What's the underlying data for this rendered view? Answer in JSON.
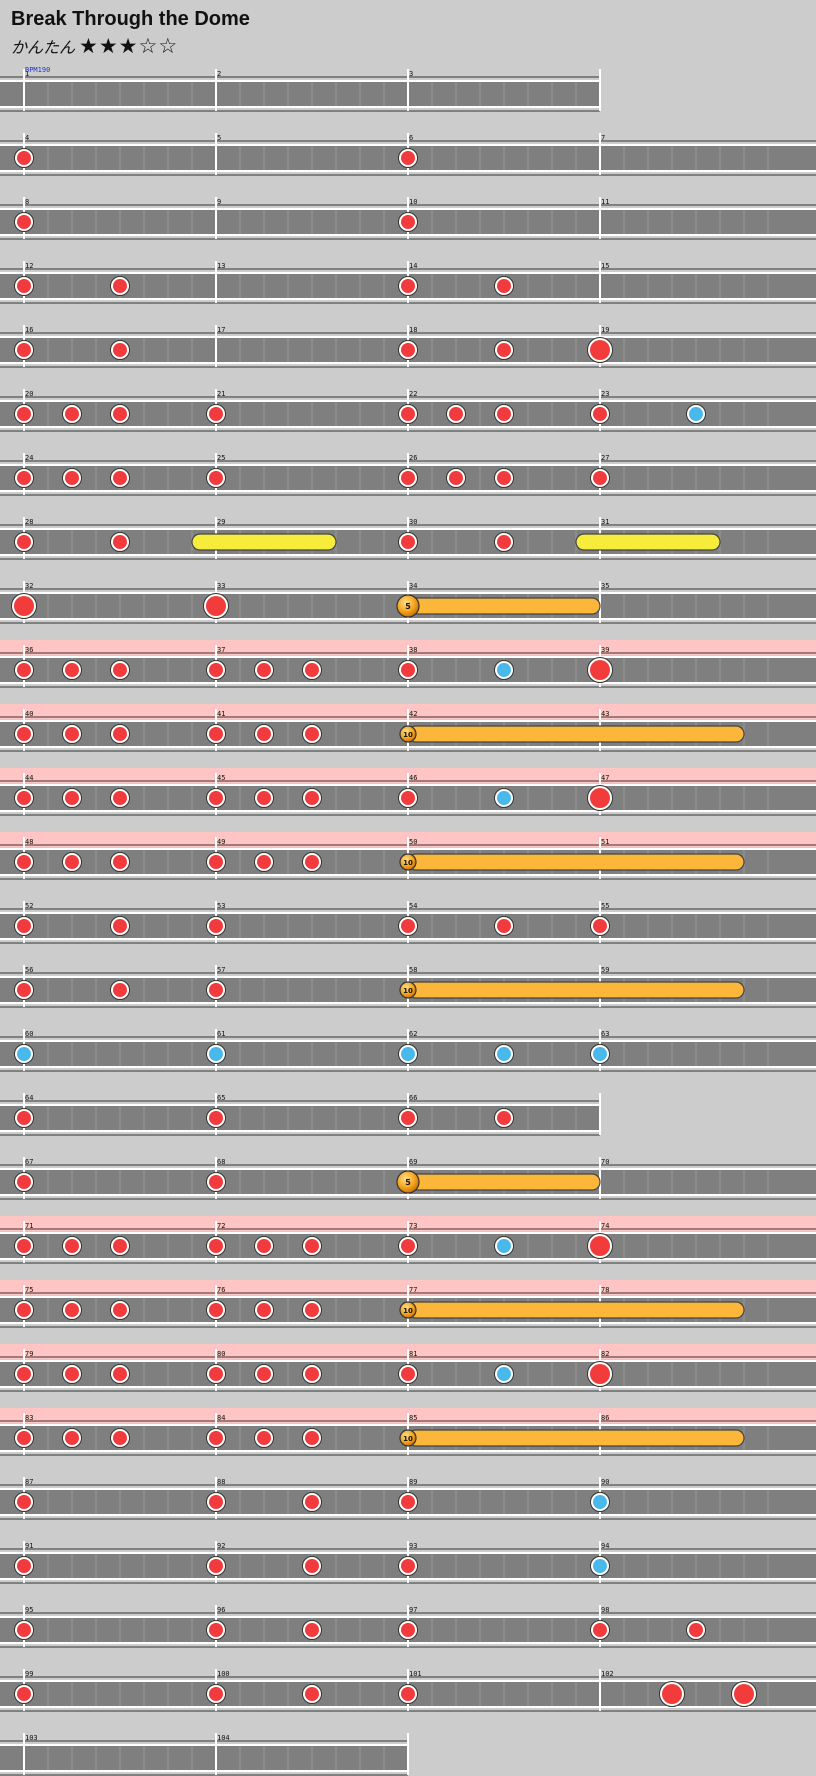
{
  "song": {
    "title": "Break Through the Dome",
    "difficulty": "かんたん",
    "stars": "★★★☆☆",
    "bpm_label": "BPM190"
  },
  "colors": {
    "background": "#cccccc",
    "lane": "#7f7f7f",
    "gogo": "#ffc4c4",
    "don": "#f23c3c",
    "ka": "#4ab9ea",
    "drumroll": "#f7ec3c",
    "balloon": "#fcb63a"
  },
  "chart_data": {
    "type": "taiko-score",
    "measures_per_row": 4,
    "rows": [
      {
        "measures": [
          "1",
          "2",
          "3"
        ],
        "gogo": false,
        "notes": []
      },
      {
        "measures": [
          "4",
          "5",
          "6",
          "7"
        ],
        "gogo": false,
        "notes": [
          {
            "t": "don",
            "b": 0
          },
          {
            "t": "don",
            "b": 8
          }
        ]
      },
      {
        "measures": [
          "8",
          "9",
          "10",
          "11"
        ],
        "gogo": false,
        "notes": [
          {
            "t": "don",
            "b": 0
          },
          {
            "t": "don",
            "b": 8
          }
        ]
      },
      {
        "measures": [
          "12",
          "13",
          "14",
          "15"
        ],
        "gogo": false,
        "notes": [
          {
            "t": "don",
            "b": 0
          },
          {
            "t": "don",
            "b": 2
          },
          {
            "t": "don",
            "b": 8
          },
          {
            "t": "don",
            "b": 10
          }
        ]
      },
      {
        "measures": [
          "16",
          "17",
          "18",
          "19"
        ],
        "gogo": false,
        "notes": [
          {
            "t": "don",
            "b": 0
          },
          {
            "t": "don",
            "b": 2
          },
          {
            "t": "don",
            "b": 8
          },
          {
            "t": "don",
            "b": 10
          },
          {
            "t": "DON",
            "b": 12
          }
        ]
      },
      {
        "measures": [
          "20",
          "21",
          "22",
          "23"
        ],
        "gogo": false,
        "notes": [
          {
            "t": "don",
            "b": 0
          },
          {
            "t": "don",
            "b": 1
          },
          {
            "t": "don",
            "b": 2
          },
          {
            "t": "don",
            "b": 4
          },
          {
            "t": "don",
            "b": 8
          },
          {
            "t": "don",
            "b": 9
          },
          {
            "t": "don",
            "b": 10
          },
          {
            "t": "don",
            "b": 12
          },
          {
            "t": "ka",
            "b": 14
          }
        ]
      },
      {
        "measures": [
          "24",
          "25",
          "26",
          "27"
        ],
        "gogo": false,
        "notes": [
          {
            "t": "don",
            "b": 0
          },
          {
            "t": "don",
            "b": 1
          },
          {
            "t": "don",
            "b": 2
          },
          {
            "t": "don",
            "b": 4
          },
          {
            "t": "don",
            "b": 8
          },
          {
            "t": "don",
            "b": 9
          },
          {
            "t": "don",
            "b": 10
          },
          {
            "t": "don",
            "b": 12
          }
        ]
      },
      {
        "measures": [
          "28",
          "29",
          "30",
          "31"
        ],
        "gogo": false,
        "notes": [
          {
            "t": "don",
            "b": 0
          },
          {
            "t": "don",
            "b": 2
          },
          {
            "t": "roll",
            "b": 3.5,
            "e": 6.5
          },
          {
            "t": "don",
            "b": 8
          },
          {
            "t": "don",
            "b": 10
          },
          {
            "t": "roll",
            "b": 11.5,
            "e": 14.5
          }
        ]
      },
      {
        "measures": [
          "32",
          "33",
          "34",
          "35"
        ],
        "gogo": false,
        "notes": [
          {
            "t": "DON",
            "b": 0
          },
          {
            "t": "DON",
            "b": 4
          },
          {
            "t": "balloon",
            "b": 8,
            "e": 12,
            "count": "5",
            "big": true
          }
        ]
      },
      {
        "measures": [
          "36",
          "37",
          "38",
          "39"
        ],
        "gogo": true,
        "notes": [
          {
            "t": "don",
            "b": 0
          },
          {
            "t": "don",
            "b": 1
          },
          {
            "t": "don",
            "b": 2
          },
          {
            "t": "don",
            "b": 4
          },
          {
            "t": "don",
            "b": 5
          },
          {
            "t": "don",
            "b": 6
          },
          {
            "t": "don",
            "b": 8
          },
          {
            "t": "ka",
            "b": 10
          },
          {
            "t": "DON",
            "b": 12
          }
        ]
      },
      {
        "measures": [
          "40",
          "41",
          "42",
          "43"
        ],
        "gogo": true,
        "notes": [
          {
            "t": "don",
            "b": 0
          },
          {
            "t": "don",
            "b": 1
          },
          {
            "t": "don",
            "b": 2
          },
          {
            "t": "don",
            "b": 4
          },
          {
            "t": "don",
            "b": 5
          },
          {
            "t": "don",
            "b": 6
          },
          {
            "t": "balloon",
            "b": 8,
            "e": 15,
            "count": "10",
            "big": false
          }
        ]
      },
      {
        "measures": [
          "44",
          "45",
          "46",
          "47"
        ],
        "gogo": true,
        "notes": [
          {
            "t": "don",
            "b": 0
          },
          {
            "t": "don",
            "b": 1
          },
          {
            "t": "don",
            "b": 2
          },
          {
            "t": "don",
            "b": 4
          },
          {
            "t": "don",
            "b": 5
          },
          {
            "t": "don",
            "b": 6
          },
          {
            "t": "don",
            "b": 8
          },
          {
            "t": "ka",
            "b": 10
          },
          {
            "t": "DON",
            "b": 12
          }
        ]
      },
      {
        "measures": [
          "48",
          "49",
          "50",
          "51"
        ],
        "gogo": true,
        "notes": [
          {
            "t": "don",
            "b": 0
          },
          {
            "t": "don",
            "b": 1
          },
          {
            "t": "don",
            "b": 2
          },
          {
            "t": "don",
            "b": 4
          },
          {
            "t": "don",
            "b": 5
          },
          {
            "t": "don",
            "b": 6
          },
          {
            "t": "balloon",
            "b": 8,
            "e": 15,
            "count": "10",
            "big": false
          }
        ]
      },
      {
        "measures": [
          "52",
          "53",
          "54",
          "55"
        ],
        "gogo": false,
        "notes": [
          {
            "t": "don",
            "b": 0
          },
          {
            "t": "don",
            "b": 2
          },
          {
            "t": "don",
            "b": 4
          },
          {
            "t": "don",
            "b": 8
          },
          {
            "t": "don",
            "b": 10
          },
          {
            "t": "don",
            "b": 12
          }
        ]
      },
      {
        "measures": [
          "56",
          "57",
          "58",
          "59"
        ],
        "gogo": false,
        "notes": [
          {
            "t": "don",
            "b": 0
          },
          {
            "t": "don",
            "b": 2
          },
          {
            "t": "don",
            "b": 4
          },
          {
            "t": "balloon",
            "b": 8,
            "e": 15,
            "count": "10",
            "big": false
          }
        ]
      },
      {
        "measures": [
          "60",
          "61",
          "62",
          "63"
        ],
        "gogo": false,
        "notes": [
          {
            "t": "ka",
            "b": 0
          },
          {
            "t": "ka",
            "b": 4
          },
          {
            "t": "ka",
            "b": 8
          },
          {
            "t": "ka",
            "b": 10
          },
          {
            "t": "ka",
            "b": 12
          }
        ]
      },
      {
        "measures": [
          "64",
          "65",
          "66"
        ],
        "gogo": false,
        "notes": [
          {
            "t": "don",
            "b": 0
          },
          {
            "t": "don",
            "b": 4
          },
          {
            "t": "don",
            "b": 8
          },
          {
            "t": "don",
            "b": 10
          }
        ]
      },
      {
        "measures": [
          "67",
          "68",
          "69",
          "70"
        ],
        "gogo": false,
        "notes": [
          {
            "t": "don",
            "b": 0
          },
          {
            "t": "don",
            "b": 4
          },
          {
            "t": "balloon",
            "b": 8,
            "e": 12,
            "count": "5",
            "big": true
          }
        ]
      },
      {
        "measures": [
          "71",
          "72",
          "73",
          "74"
        ],
        "gogo": true,
        "notes": [
          {
            "t": "don",
            "b": 0
          },
          {
            "t": "don",
            "b": 1
          },
          {
            "t": "don",
            "b": 2
          },
          {
            "t": "don",
            "b": 4
          },
          {
            "t": "don",
            "b": 5
          },
          {
            "t": "don",
            "b": 6
          },
          {
            "t": "don",
            "b": 8
          },
          {
            "t": "ka",
            "b": 10
          },
          {
            "t": "DON",
            "b": 12
          }
        ]
      },
      {
        "measures": [
          "75",
          "76",
          "77",
          "78"
        ],
        "gogo": true,
        "notes": [
          {
            "t": "don",
            "b": 0
          },
          {
            "t": "don",
            "b": 1
          },
          {
            "t": "don",
            "b": 2
          },
          {
            "t": "don",
            "b": 4
          },
          {
            "t": "don",
            "b": 5
          },
          {
            "t": "don",
            "b": 6
          },
          {
            "t": "balloon",
            "b": 8,
            "e": 15,
            "count": "10",
            "big": false
          }
        ]
      },
      {
        "measures": [
          "79",
          "80",
          "81",
          "82"
        ],
        "gogo": true,
        "notes": [
          {
            "t": "don",
            "b": 0
          },
          {
            "t": "don",
            "b": 1
          },
          {
            "t": "don",
            "b": 2
          },
          {
            "t": "don",
            "b": 4
          },
          {
            "t": "don",
            "b": 5
          },
          {
            "t": "don",
            "b": 6
          },
          {
            "t": "don",
            "b": 8
          },
          {
            "t": "ka",
            "b": 10
          },
          {
            "t": "DON",
            "b": 12
          }
        ]
      },
      {
        "measures": [
          "83",
          "84",
          "85",
          "86"
        ],
        "gogo": true,
        "notes": [
          {
            "t": "don",
            "b": 0
          },
          {
            "t": "don",
            "b": 1
          },
          {
            "t": "don",
            "b": 2
          },
          {
            "t": "don",
            "b": 4
          },
          {
            "t": "don",
            "b": 5
          },
          {
            "t": "don",
            "b": 6
          },
          {
            "t": "balloon",
            "b": 8,
            "e": 15,
            "count": "10",
            "big": false
          }
        ]
      },
      {
        "measures": [
          "87",
          "88",
          "89",
          "90"
        ],
        "gogo": false,
        "notes": [
          {
            "t": "don",
            "b": 0
          },
          {
            "t": "don",
            "b": 4
          },
          {
            "t": "don",
            "b": 6
          },
          {
            "t": "don",
            "b": 8
          },
          {
            "t": "ka",
            "b": 12
          }
        ]
      },
      {
        "measures": [
          "91",
          "92",
          "93",
          "94"
        ],
        "gogo": false,
        "notes": [
          {
            "t": "don",
            "b": 0
          },
          {
            "t": "don",
            "b": 4
          },
          {
            "t": "don",
            "b": 6
          },
          {
            "t": "don",
            "b": 8
          },
          {
            "t": "ka",
            "b": 12
          }
        ]
      },
      {
        "measures": [
          "95",
          "96",
          "97",
          "98"
        ],
        "gogo": false,
        "notes": [
          {
            "t": "don",
            "b": 0
          },
          {
            "t": "don",
            "b": 4
          },
          {
            "t": "don",
            "b": 6
          },
          {
            "t": "don",
            "b": 8
          },
          {
            "t": "don",
            "b": 12
          },
          {
            "t": "don",
            "b": 14
          }
        ]
      },
      {
        "measures": [
          "99",
          "100",
          "101",
          "102"
        ],
        "gogo": false,
        "notes": [
          {
            "t": "don",
            "b": 0
          },
          {
            "t": "don",
            "b": 4
          },
          {
            "t": "don",
            "b": 6
          },
          {
            "t": "don",
            "b": 8
          },
          {
            "t": "DON",
            "b": 13.5
          },
          {
            "t": "DON",
            "b": 15
          }
        ]
      },
      {
        "measures": [
          "103",
          "104"
        ],
        "gogo": false,
        "notes": []
      }
    ]
  }
}
